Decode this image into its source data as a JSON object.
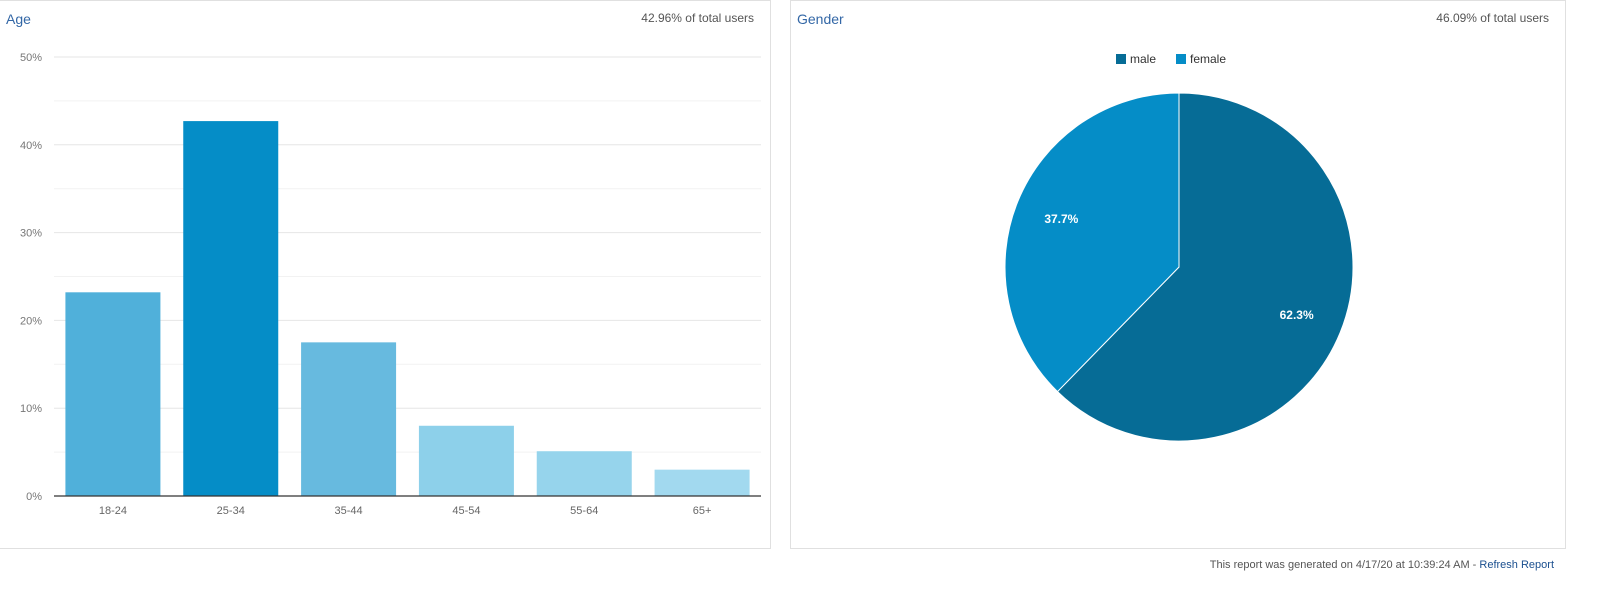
{
  "age_panel": {
    "title": "Age",
    "share": "42.96% of total users"
  },
  "gender_panel": {
    "title": "Gender",
    "share": "46.09% of total users",
    "legend": [
      {
        "label": "male",
        "color": "#066c96"
      },
      {
        "label": "female",
        "color": "#058dc7"
      }
    ]
  },
  "footer": {
    "text": "This report was generated on 4/17/20 at 10:39:24 AM - ",
    "link": "Refresh Report"
  },
  "chart_data": [
    {
      "type": "bar",
      "title": "Age",
      "categories": [
        "18-24",
        "25-34",
        "35-44",
        "45-54",
        "55-64",
        "65+"
      ],
      "values": [
        23.2,
        42.7,
        17.5,
        8.0,
        5.1,
        3.0
      ],
      "colors": [
        "#50b0da",
        "#058dc7",
        "#67badf",
        "#8dd0ea",
        "#96d4ec",
        "#a2d9ef"
      ],
      "xlabel": "",
      "ylabel": "",
      "ylim": [
        0,
        50
      ],
      "yticks": [
        "0%",
        "10%",
        "20%",
        "30%",
        "40%",
        "50%"
      ],
      "grid": true,
      "legend": "none"
    },
    {
      "type": "pie",
      "title": "Gender",
      "categories": [
        "male",
        "female"
      ],
      "values": [
        62.3,
        37.7
      ],
      "labels": [
        "62.3%",
        "37.7%"
      ],
      "colors": [
        "#066c96",
        "#058dc7"
      ],
      "legend": "top"
    }
  ]
}
